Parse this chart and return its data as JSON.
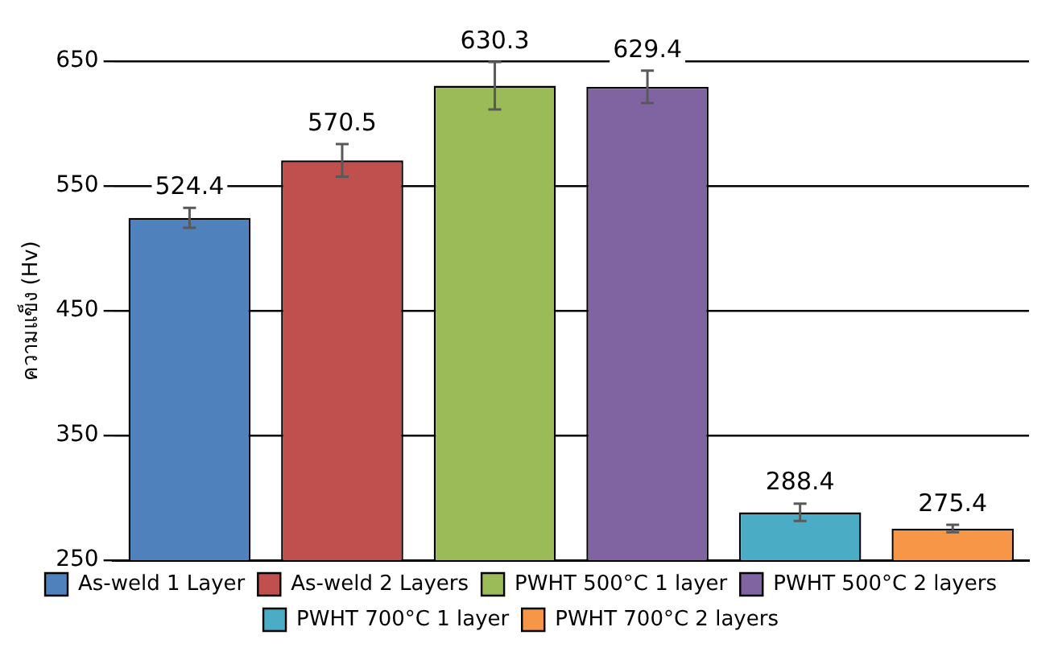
{
  "chart_data": {
    "type": "bar",
    "ylabel": "ความแข็ง (Hv)",
    "categories": [
      null,
      null,
      null,
      null,
      null,
      null
    ],
    "series": [
      {
        "name": "As-weld 1 Layer",
        "color": "#4f81bd",
        "values": [
          524.4,
          null,
          null,
          null,
          null,
          null
        ],
        "errors": [
          8,
          null,
          null,
          null,
          null,
          null
        ]
      },
      {
        "name": "As-weld 2 Layers",
        "color": "#c0504d",
        "values": [
          null,
          570.5,
          null,
          null,
          null,
          null
        ],
        "errors": [
          null,
          13,
          null,
          null,
          null,
          null
        ]
      },
      {
        "name": "PWHT 500°C 1 layer",
        "color": "#9bbb59",
        "values": [
          null,
          null,
          630.3,
          null,
          null,
          null
        ],
        "errors": [
          null,
          null,
          19,
          null,
          null,
          null
        ]
      },
      {
        "name": "PWHT 500°C 2 layers",
        "color": "#8064a2",
        "values": [
          null,
          null,
          null,
          629.4,
          null,
          null
        ],
        "errors": [
          null,
          null,
          null,
          13,
          null,
          null
        ]
      },
      {
        "name": "PWHT 700°C 1 layer",
        "color": "#4bacc6",
        "values": [
          null,
          null,
          null,
          null,
          288.4,
          null
        ],
        "errors": [
          null,
          null,
          null,
          null,
          7,
          null
        ]
      },
      {
        "name": "PWHT 700°C 2 layers",
        "color": "#f79646",
        "values": [
          null,
          null,
          null,
          null,
          null,
          275.4
        ],
        "errors": [
          null,
          null,
          null,
          null,
          null,
          3
        ]
      }
    ],
    "ylim": [
      250,
      650
    ],
    "yticks": [
      250,
      350,
      450,
      550,
      650
    ],
    "grid": "y",
    "legend": "bottom",
    "data_labels": true,
    "tick_labels": "y"
  }
}
